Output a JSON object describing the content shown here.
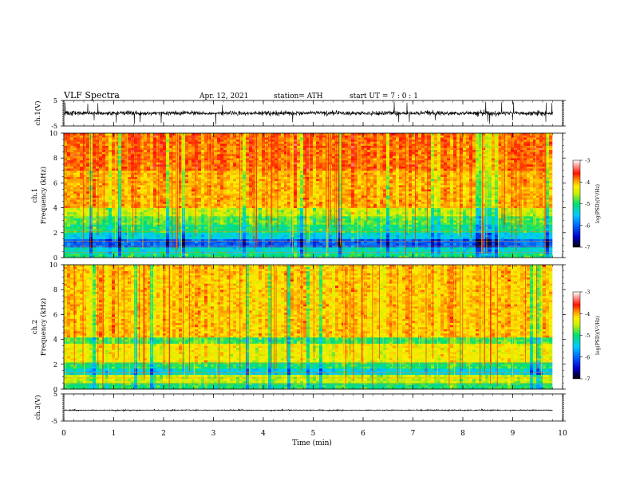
{
  "header": {
    "title": "VLF  Spectra",
    "date": "Apr. 12, 2021",
    "station": "station= ATH",
    "start_ut": "start  UT  =   7  : 0  : 1"
  },
  "chart_data": [
    {
      "type": "line",
      "name": "ch1-waveform",
      "ylabel": "ch.1(V)",
      "ylim": [
        -5,
        5
      ],
      "yticks": [
        "5",
        "-5"
      ],
      "xlim": [
        0,
        10
      ],
      "x_extent_min": 9.8,
      "baseline": 0,
      "amplitude_typical": 1.5,
      "amplitude_max": 4.5,
      "color": "#000000"
    },
    {
      "type": "heatmap",
      "name": "ch1-spectrogram",
      "ylabel_line1": "ch.1",
      "ylabel_line2": "Frequency (kHz)",
      "ylim": [
        0,
        10
      ],
      "yticks": [
        "0",
        "2",
        "4",
        "6",
        "8",
        "10"
      ],
      "xlim": [
        0,
        10
      ],
      "x_extent_min": 9.8,
      "colorbar": {
        "label": "log(PSD)(V²/Hz)",
        "range": [
          -7,
          -3
        ],
        "ticks": [
          "-3",
          "-4",
          "-5",
          "-6",
          "-7"
        ]
      },
      "bands_khz_to_logpsd": [
        [
          0.0,
          0.3,
          -5.0
        ],
        [
          0.3,
          0.9,
          -5.3
        ],
        [
          0.9,
          1.5,
          -6.0
        ],
        [
          1.5,
          2.0,
          -5.4
        ],
        [
          2.0,
          2.7,
          -5.0
        ],
        [
          2.7,
          3.3,
          -4.8
        ],
        [
          3.3,
          4.0,
          -4.5
        ],
        [
          4.0,
          7.0,
          -4.0
        ],
        [
          7.0,
          10.0,
          -3.8
        ]
      ]
    },
    {
      "type": "heatmap",
      "name": "ch2-spectrogram",
      "ylabel_line1": "ch.2",
      "ylabel_line2": "Frequency (kHz)",
      "ylim": [
        0,
        10
      ],
      "yticks": [
        "0",
        "2",
        "4",
        "6",
        "8",
        "10"
      ],
      "xlim": [
        0,
        10
      ],
      "x_extent_min": 9.8,
      "colorbar": {
        "label": "log(PSD)(V²/Hz)",
        "range": [
          -7,
          -3
        ],
        "ticks": [
          "-3",
          "-4",
          "-5",
          "-6",
          "-7"
        ]
      },
      "bands_khz_to_logpsd": [
        [
          0.0,
          0.5,
          -5.0
        ],
        [
          0.5,
          1.1,
          -4.5
        ],
        [
          1.1,
          1.7,
          -5.4
        ],
        [
          1.7,
          2.2,
          -5.0
        ],
        [
          2.2,
          3.6,
          -4.3
        ],
        [
          3.6,
          4.2,
          -4.9
        ],
        [
          4.2,
          10.0,
          -4.1
        ]
      ]
    },
    {
      "type": "line",
      "name": "ch3-waveform",
      "ylabel": "ch.3(V)",
      "ylim": [
        -5,
        5
      ],
      "yticks": [
        "5",
        "-5"
      ],
      "xlim": [
        0,
        10
      ],
      "x_extent_min": 9.8,
      "baseline": -1,
      "amplitude_typical": 0.3,
      "amplitude_max": 0.4,
      "color": "#000000"
    }
  ],
  "x_axis": {
    "label": "Time  (min)",
    "ticks": [
      "0",
      "1",
      "2",
      "3",
      "4",
      "5",
      "6",
      "7",
      "8",
      "9",
      "10"
    ]
  }
}
